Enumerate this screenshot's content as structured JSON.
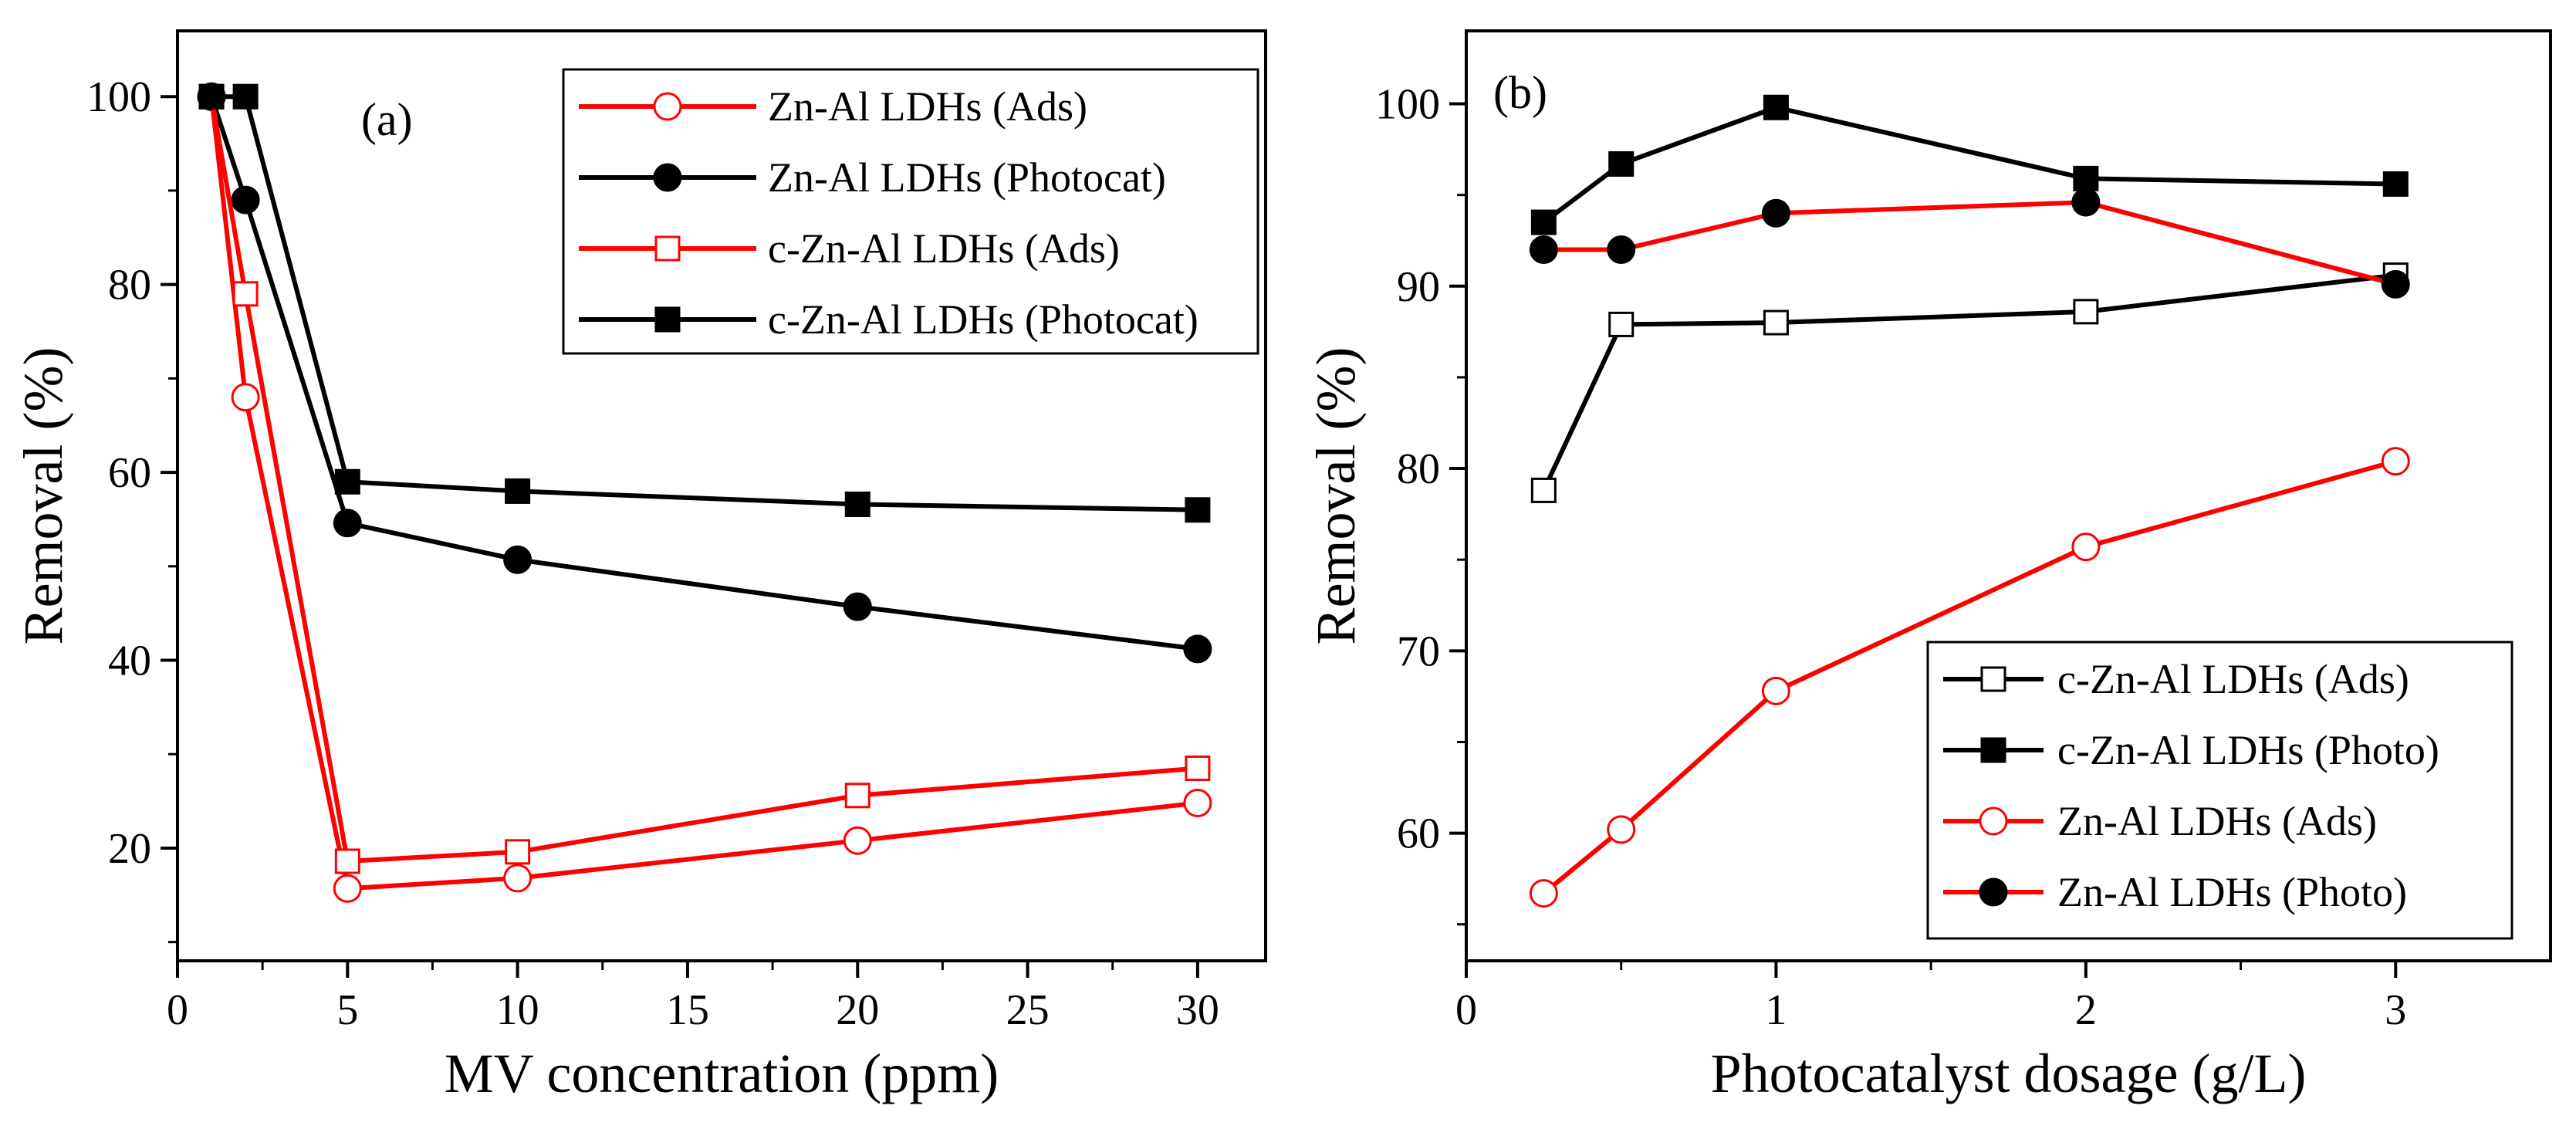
{
  "colors": {
    "black": "#000000",
    "red": "#ff0000",
    "white": "#ffffff"
  },
  "chart_data": [
    {
      "type": "line",
      "panel_label": "(a)",
      "xlabel": "MV concentration (ppm)",
      "ylabel": "Removal (%)",
      "xlim": [
        0,
        32
      ],
      "ylim": [
        8,
        107
      ],
      "xticks": [
        0,
        5,
        10,
        15,
        20,
        25,
        30
      ],
      "yticks": [
        20,
        40,
        60,
        80,
        100
      ],
      "legend_position": "top-right",
      "series": [
        {
          "name": "Zn-Al LDHs (Ads)",
          "color": "red",
          "marker": "circle",
          "filled": false,
          "x": [
            1,
            2,
            5,
            10,
            20,
            30
          ],
          "y": [
            100,
            68,
            15.7,
            16.8,
            20.8,
            24.8
          ]
        },
        {
          "name": "Zn-Al LDHs (Photocat)",
          "color": "black",
          "marker": "circle",
          "filled": true,
          "x": [
            1,
            2,
            5,
            10,
            20,
            30
          ],
          "y": [
            100,
            89,
            54.6,
            50.7,
            45.7,
            41.2
          ]
        },
        {
          "name": "c-Zn-Al LDHs (Ads)",
          "color": "red",
          "marker": "square",
          "filled": false,
          "x": [
            1,
            2,
            5,
            10,
            20,
            30
          ],
          "y": [
            100,
            79,
            18.6,
            19.6,
            25.6,
            28.5
          ]
        },
        {
          "name": "c-Zn-Al LDHs (Photocat)",
          "color": "black",
          "marker": "square",
          "filled": true,
          "x": [
            1,
            2,
            5,
            10,
            20,
            30
          ],
          "y": [
            100,
            100,
            59,
            58,
            56.6,
            56
          ]
        }
      ]
    },
    {
      "type": "line",
      "panel_label": "(b)",
      "xlabel": "Photocatalyst dosage (g/L)",
      "ylabel": "Removal (%)",
      "xlim": [
        0,
        3.5
      ],
      "ylim": [
        53,
        104
      ],
      "xticks": [
        0,
        1,
        2,
        3
      ],
      "yticks": [
        60,
        70,
        80,
        90,
        100
      ],
      "legend_position": "bottom-right",
      "series": [
        {
          "name": "c-Zn-Al LDHs (Ads)",
          "color": "black",
          "marker": "square",
          "filled": false,
          "x": [
            0.25,
            0.5,
            1,
            2,
            3
          ],
          "y": [
            78.8,
            87.9,
            88,
            88.6,
            90.6
          ]
        },
        {
          "name": "c-Zn-Al LDHs (Photo)",
          "color": "black",
          "marker": "square",
          "filled": true,
          "x": [
            0.25,
            0.5,
            1,
            2,
            3
          ],
          "y": [
            93.5,
            96.7,
            99.8,
            95.9,
            95.6
          ]
        },
        {
          "name": "Zn-Al LDHs (Ads)",
          "color": "red",
          "marker": "circle",
          "filled": false,
          "x": [
            0.25,
            0.5,
            1,
            2,
            3
          ],
          "y": [
            56.7,
            60.2,
            67.8,
            75.7,
            80.4
          ]
        },
        {
          "name": "Zn-Al LDHs (Photo)",
          "color": "black_red",
          "marker": "circle",
          "filled": true,
          "x": [
            0.25,
            0.5,
            1,
            2,
            3
          ],
          "y": [
            92,
            92,
            94,
            94.6,
            90.1
          ]
        }
      ]
    }
  ]
}
